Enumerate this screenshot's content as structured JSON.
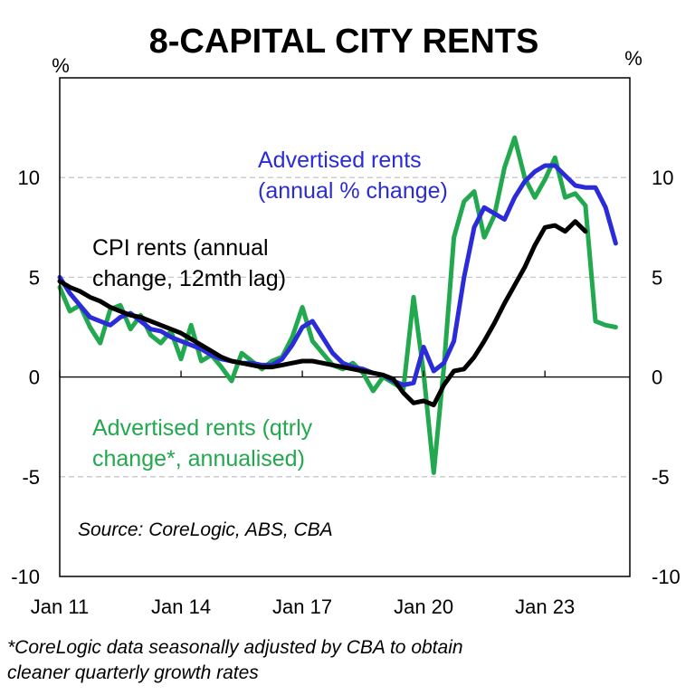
{
  "chart_data": {
    "type": "line",
    "title": "8-CAPITAL CITY RENTS",
    "y_unit_left": "%",
    "y_unit_right": "%",
    "ylim": [
      -10,
      15
    ],
    "yticks": [
      -10,
      -5,
      0,
      5,
      10
    ],
    "ytick_labels": [
      "-10",
      "-5",
      "0",
      "5",
      "10"
    ],
    "xlim": [
      2011.0,
      2025.1
    ],
    "xticks": [
      {
        "x": 2011.0,
        "label": "Jan 11"
      },
      {
        "x": 2014.0,
        "label": "Jan 14"
      },
      {
        "x": 2017.0,
        "label": "Jan 17"
      },
      {
        "x": 2020.0,
        "label": "Jan 20"
      },
      {
        "x": 2023.0,
        "label": "Jan 23"
      }
    ],
    "gridlines": [
      -5,
      5,
      10
    ],
    "source": "Source: CoreLogic, ABS, CBA",
    "footnote": [
      "*CoreLogic data seasonally adjusted by CBA to obtain",
      "cleaner quarterly growth rates"
    ],
    "series": [
      {
        "name": "Advertised rents (annual % change)",
        "label_lines": [
          "Advertised rents",
          "(annual % change)"
        ],
        "color": "#2b2bd9",
        "x": [
          2011.0,
          2011.25,
          2011.5,
          2011.75,
          2012.0,
          2012.25,
          2012.5,
          2012.75,
          2013.0,
          2013.25,
          2013.5,
          2013.75,
          2014.0,
          2014.25,
          2014.5,
          2014.75,
          2015.0,
          2015.25,
          2015.5,
          2015.75,
          2016.0,
          2016.25,
          2016.5,
          2016.75,
          2017.0,
          2017.25,
          2017.5,
          2017.75,
          2018.0,
          2018.25,
          2018.5,
          2018.75,
          2019.0,
          2019.25,
          2019.5,
          2019.75,
          2020.0,
          2020.25,
          2020.5,
          2020.75,
          2021.0,
          2021.25,
          2021.5,
          2021.75,
          2022.0,
          2022.25,
          2022.5,
          2022.75,
          2023.0,
          2023.25,
          2023.5,
          2023.75,
          2024.0,
          2024.25,
          2024.5,
          2024.75
        ],
        "y": [
          5.0,
          4.2,
          3.6,
          3.0,
          2.8,
          2.6,
          3.0,
          3.2,
          2.8,
          2.4,
          2.3,
          2.0,
          1.8,
          1.6,
          1.4,
          1.1,
          0.9,
          0.8,
          0.7,
          0.7,
          0.6,
          0.6,
          0.9,
          1.6,
          2.5,
          2.8,
          2.0,
          1.2,
          0.7,
          0.5,
          0.4,
          0.2,
          0.1,
          -0.2,
          -0.4,
          -0.3,
          1.5,
          0.3,
          0.7,
          1.8,
          5.0,
          7.5,
          8.5,
          8.2,
          7.9,
          9.0,
          9.8,
          10.3,
          10.6,
          10.6,
          10.1,
          9.6,
          9.5,
          9.5,
          8.5,
          6.7
        ]
      },
      {
        "name": "CPI rents (annual change, 12mth lag)",
        "label_lines": [
          "CPI rents (annual",
          "change, 12mth lag)"
        ],
        "color": "#000000",
        "x": [
          2011.0,
          2011.25,
          2011.5,
          2011.75,
          2012.0,
          2012.25,
          2012.5,
          2012.75,
          2013.0,
          2013.25,
          2013.5,
          2013.75,
          2014.0,
          2014.25,
          2014.5,
          2014.75,
          2015.0,
          2015.25,
          2015.5,
          2015.75,
          2016.0,
          2016.25,
          2016.5,
          2016.75,
          2017.0,
          2017.25,
          2017.5,
          2017.75,
          2018.0,
          2018.25,
          2018.5,
          2018.75,
          2019.0,
          2019.25,
          2019.5,
          2019.75,
          2020.0,
          2020.25,
          2020.5,
          2020.75,
          2021.0,
          2021.25,
          2021.5,
          2021.75,
          2022.0,
          2022.25,
          2022.5,
          2022.75,
          2023.0,
          2023.25,
          2023.5,
          2023.75,
          2024.0
        ],
        "y": [
          4.8,
          4.5,
          4.3,
          4.0,
          3.8,
          3.5,
          3.3,
          3.1,
          3.0,
          2.8,
          2.6,
          2.4,
          2.2,
          1.9,
          1.6,
          1.3,
          1.0,
          0.8,
          0.7,
          0.6,
          0.5,
          0.5,
          0.6,
          0.7,
          0.8,
          0.8,
          0.7,
          0.6,
          0.5,
          0.4,
          0.3,
          0.2,
          0.1,
          -0.1,
          -0.8,
          -1.3,
          -1.2,
          -1.4,
          -0.4,
          0.3,
          0.4,
          1.0,
          1.8,
          2.7,
          3.7,
          4.6,
          5.5,
          6.6,
          7.5,
          7.6,
          7.3,
          7.8,
          7.3
        ]
      },
      {
        "name": "Advertised rents (qtrly change*, annualised)",
        "label_lines": [
          "Advertised rents (qtrly",
          "change*, annualised)"
        ],
        "color": "#22a84e",
        "x": [
          2011.0,
          2011.25,
          2011.5,
          2011.75,
          2012.0,
          2012.25,
          2012.5,
          2012.75,
          2013.0,
          2013.25,
          2013.5,
          2013.75,
          2014.0,
          2014.25,
          2014.5,
          2014.75,
          2015.0,
          2015.25,
          2015.5,
          2015.75,
          2016.0,
          2016.25,
          2016.5,
          2016.75,
          2017.0,
          2017.25,
          2017.5,
          2017.75,
          2018.0,
          2018.25,
          2018.5,
          2018.75,
          2019.0,
          2019.25,
          2019.5,
          2019.75,
          2020.0,
          2020.25,
          2020.5,
          2020.75,
          2021.0,
          2021.25,
          2021.5,
          2021.75,
          2022.0,
          2022.25,
          2022.5,
          2022.75,
          2023.0,
          2023.25,
          2023.5,
          2023.75,
          2024.0,
          2024.25,
          2024.5,
          2024.75
        ],
        "y": [
          4.5,
          3.3,
          3.6,
          2.5,
          1.7,
          3.4,
          3.6,
          2.4,
          3.1,
          2.1,
          1.7,
          2.3,
          0.9,
          2.6,
          0.8,
          1.1,
          0.5,
          -0.2,
          1.2,
          0.8,
          0.4,
          0.8,
          1.0,
          2.0,
          3.5,
          1.8,
          1.2,
          0.6,
          0.4,
          0.7,
          0.2,
          -0.7,
          0.0,
          -0.3,
          -0.6,
          4.0,
          0.2,
          -4.8,
          0.5,
          7.0,
          8.8,
          9.3,
          7.0,
          8.1,
          10.5,
          12.0,
          10.0,
          9.0,
          9.9,
          11.0,
          9.0,
          9.2,
          8.6,
          2.8,
          2.6,
          2.5
        ]
      }
    ]
  }
}
